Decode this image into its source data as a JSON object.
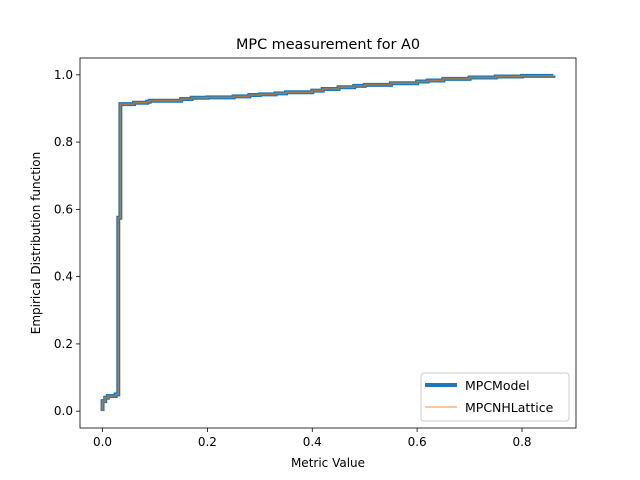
{
  "chart_data": {
    "type": "line",
    "title": "MPC measurement for A0",
    "xlabel": "Metric Value",
    "ylabel": "Empirical Distribution function",
    "xlim": [
      -0.043,
      0.903
    ],
    "ylim": [
      -0.05,
      1.05
    ],
    "xticks": [
      0.0,
      0.2,
      0.4,
      0.6,
      0.8
    ],
    "xtick_labels": [
      "0.0",
      "0.2",
      "0.4",
      "0.6",
      "0.8"
    ],
    "yticks": [
      0.0,
      0.2,
      0.4,
      0.6,
      0.8,
      1.0
    ],
    "ytick_labels": [
      "0.0",
      "0.2",
      "0.4",
      "0.6",
      "0.8",
      "1.0"
    ],
    "grid": false,
    "legend_position": "lower-right",
    "series": [
      {
        "name": "MPCModel",
        "color": "#1f77b4",
        "style": "step",
        "x": [
          0.0,
          0.0,
          0.005,
          0.01,
          0.025,
          0.03,
          0.03,
          0.034,
          0.034,
          0.06,
          0.085,
          0.09,
          0.15,
          0.17,
          0.2,
          0.25,
          0.28,
          0.3,
          0.33,
          0.35,
          0.4,
          0.42,
          0.45,
          0.48,
          0.5,
          0.55,
          0.6,
          0.62,
          0.65,
          0.7,
          0.75,
          0.8,
          0.86
        ],
        "y": [
          0.0,
          0.03,
          0.04,
          0.045,
          0.05,
          0.05,
          0.575,
          0.575,
          0.913,
          0.917,
          0.92,
          0.923,
          0.928,
          0.932,
          0.933,
          0.936,
          0.94,
          0.942,
          0.945,
          0.948,
          0.953,
          0.958,
          0.963,
          0.967,
          0.97,
          0.975,
          0.98,
          0.983,
          0.988,
          0.992,
          0.995,
          0.997,
          0.998
        ]
      },
      {
        "name": "MPCNHLattice",
        "color": "#ff7f0e",
        "style": "step",
        "x": [
          0.0,
          0.0,
          0.005,
          0.01,
          0.025,
          0.03,
          0.03,
          0.034,
          0.034,
          0.06,
          0.085,
          0.09,
          0.15,
          0.17,
          0.2,
          0.25,
          0.28,
          0.3,
          0.33,
          0.35,
          0.4,
          0.42,
          0.45,
          0.48,
          0.5,
          0.55,
          0.6,
          0.62,
          0.65,
          0.7,
          0.75,
          0.8,
          0.86
        ],
        "y": [
          0.0,
          0.03,
          0.04,
          0.045,
          0.05,
          0.05,
          0.575,
          0.575,
          0.913,
          0.917,
          0.92,
          0.923,
          0.928,
          0.932,
          0.933,
          0.936,
          0.94,
          0.942,
          0.945,
          0.948,
          0.953,
          0.958,
          0.963,
          0.967,
          0.97,
          0.975,
          0.98,
          0.983,
          0.988,
          0.992,
          0.995,
          0.997,
          0.998
        ]
      }
    ]
  }
}
